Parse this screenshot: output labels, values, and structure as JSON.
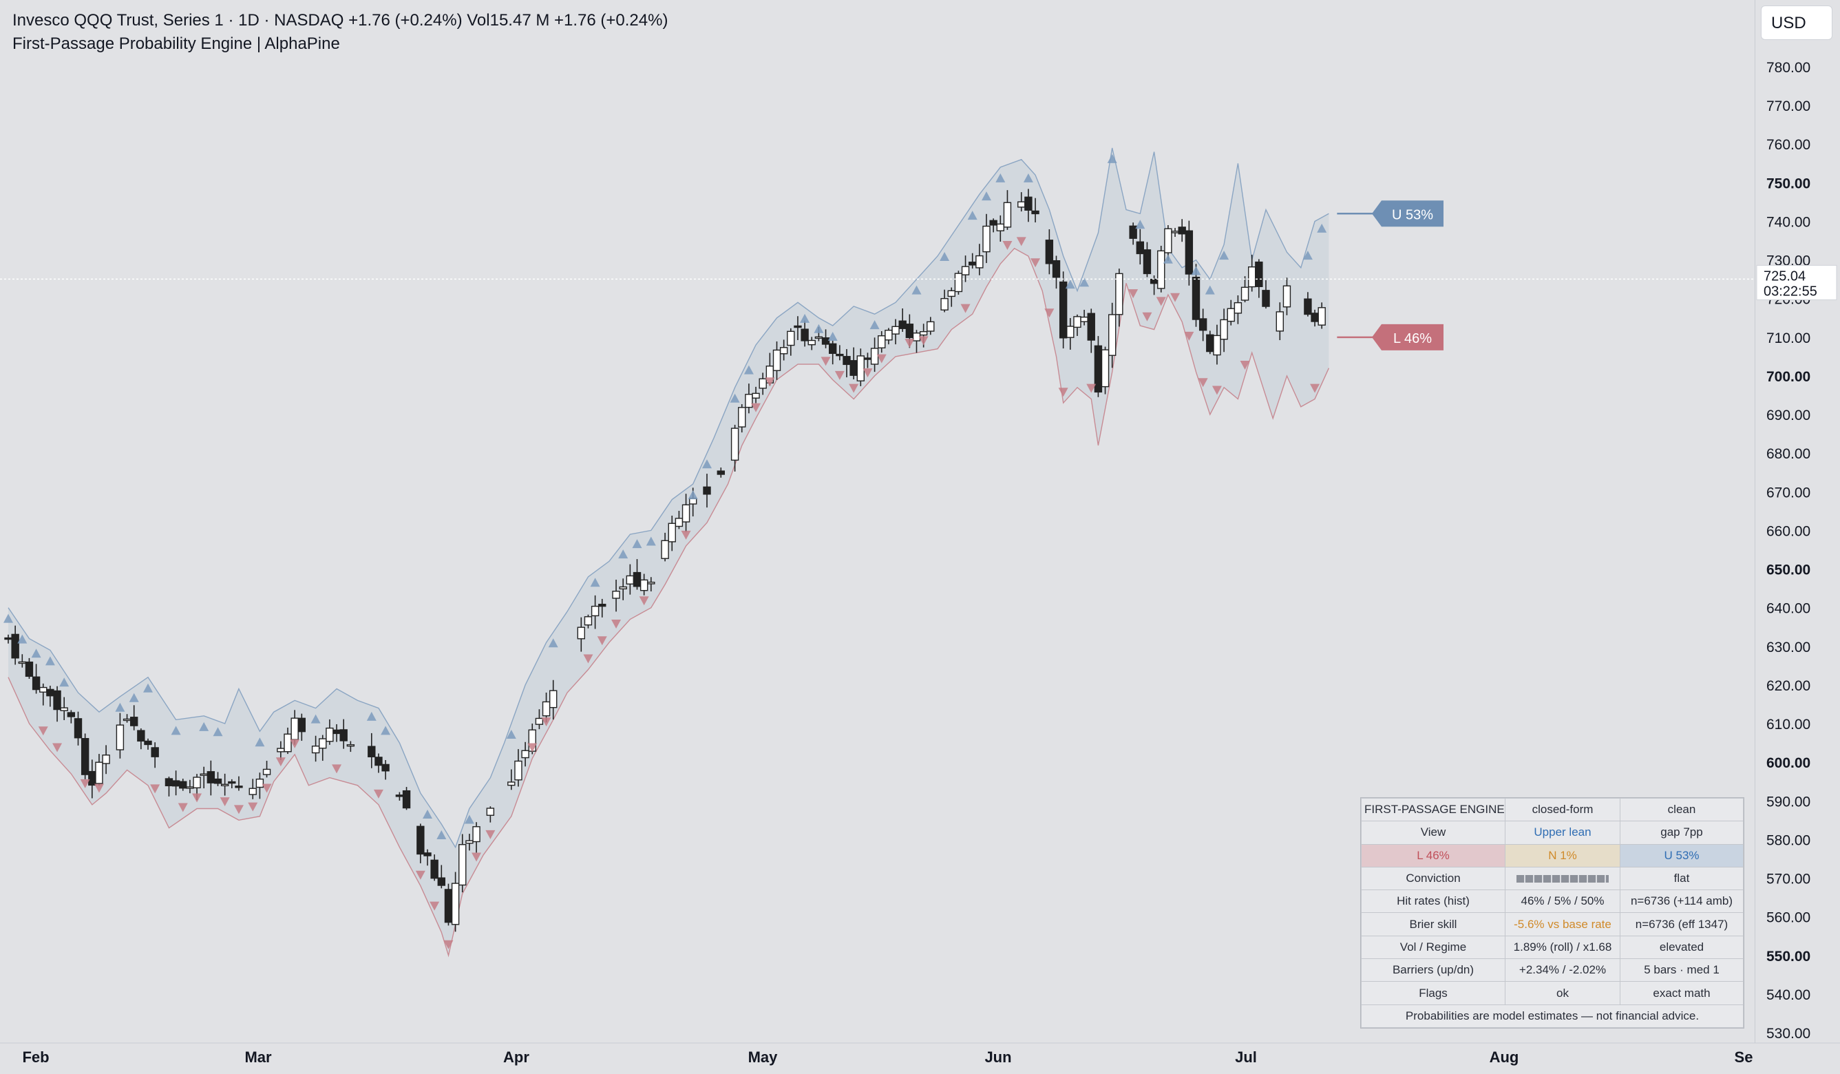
{
  "header": {
    "line1": "Invesco QQQ Trust, Series 1 · 1D · NASDAQ  +1.76 (+0.24%)  Vol15.47 M  +1.76 (+0.24%)",
    "line2": "First-Passage Probability Engine | AlphaPine"
  },
  "currency": "USD",
  "colors": {
    "background": "#e1e2e5",
    "upper_band": "#7d9bbd",
    "lower_band": "#c47c86",
    "bull_candle": "#ffffff",
    "bear_candle": "#222222",
    "up_label": "#6e8fb4",
    "down_label": "#c4707b"
  },
  "chart_data": {
    "type": "candlestick",
    "x_axis_months": [
      "Feb",
      "Mar",
      "Apr",
      "May",
      "Jun",
      "Jul",
      "Aug",
      "Se"
    ],
    "y_axis": {
      "ticks": [
        "780.00",
        "770.00",
        "760.00",
        "750.00",
        "740.00",
        "730.00",
        "720.00",
        "710.00",
        "700.00",
        "690.00",
        "680.00",
        "670.00",
        "660.00",
        "650.00",
        "640.00",
        "630.00",
        "620.00",
        "610.00",
        "600.00",
        "590.00",
        "580.00",
        "570.00",
        "560.00",
        "550.00",
        "540.00",
        "530.00"
      ],
      "bold_ticks": [
        "750.00",
        "700.00",
        "650.00",
        "600.00",
        "550.00"
      ],
      "range": [
        527,
        787
      ]
    },
    "last_price": "725.04",
    "countdown": "03:22:55",
    "upper_target": {
      "label": "U 53%",
      "price": 742
    },
    "lower_target": {
      "label": "L 46%",
      "price": 710
    },
    "close_path": [
      [
        0,
        632
      ],
      [
        3,
        622
      ],
      [
        6,
        617
      ],
      [
        9,
        612
      ],
      [
        11,
        597
      ],
      [
        12,
        595
      ],
      [
        14,
        603
      ],
      [
        17,
        610
      ],
      [
        20,
        606
      ],
      [
        23,
        594
      ],
      [
        27,
        596
      ],
      [
        30,
        594
      ],
      [
        33,
        593
      ],
      [
        36,
        594
      ],
      [
        38,
        603
      ],
      [
        41,
        610
      ],
      [
        43,
        604
      ],
      [
        46,
        608
      ],
      [
        50,
        604
      ],
      [
        53,
        601
      ],
      [
        56,
        591
      ],
      [
        59,
        577
      ],
      [
        62,
        568
      ],
      [
        63,
        560
      ],
      [
        65,
        578
      ],
      [
        68,
        586
      ],
      [
        70,
        591
      ],
      [
        72,
        593
      ],
      [
        75,
        610
      ],
      [
        78,
        620
      ],
      [
        80,
        630
      ],
      [
        83,
        637
      ],
      [
        86,
        644
      ],
      [
        89,
        647
      ],
      [
        92,
        648
      ],
      [
        94,
        657
      ],
      [
        97,
        666
      ],
      [
        100,
        671
      ],
      [
        103,
        678
      ],
      [
        105,
        693
      ],
      [
        107,
        697
      ],
      [
        110,
        707
      ],
      [
        113,
        712
      ],
      [
        116,
        709
      ],
      [
        118,
        705
      ],
      [
        121,
        702
      ],
      [
        124,
        708
      ],
      [
        127,
        713
      ],
      [
        130,
        711
      ],
      [
        133,
        716
      ],
      [
        135,
        723
      ],
      [
        138,
        729
      ],
      [
        140,
        737
      ],
      [
        142,
        741
      ],
      [
        144,
        745
      ],
      [
        146,
        742
      ],
      [
        148,
        738
      ],
      [
        150,
        724
      ],
      [
        151,
        708
      ],
      [
        153,
        717
      ],
      [
        155,
        711
      ],
      [
        156,
        697
      ],
      [
        158,
        716
      ],
      [
        160,
        739
      ],
      [
        162,
        730
      ],
      [
        164,
        724
      ],
      [
        166,
        740
      ],
      [
        168,
        738
      ],
      [
        170,
        714
      ],
      [
        172,
        708
      ],
      [
        174,
        716
      ],
      [
        176,
        719
      ],
      [
        178,
        727
      ],
      [
        181,
        712
      ],
      [
        183,
        723
      ],
      [
        185,
        718
      ],
      [
        187,
        713
      ],
      [
        189,
        719
      ]
    ],
    "upper_band_path": [
      [
        0,
        640
      ],
      [
        3,
        632
      ],
      [
        6,
        629
      ],
      [
        10,
        618
      ],
      [
        13,
        613
      ],
      [
        16,
        617
      ],
      [
        20,
        622
      ],
      [
        24,
        611
      ],
      [
        28,
        612
      ],
      [
        31,
        610
      ],
      [
        33,
        619
      ],
      [
        36,
        608
      ],
      [
        38,
        613
      ],
      [
        41,
        616
      ],
      [
        44,
        614
      ],
      [
        47,
        619
      ],
      [
        50,
        616
      ],
      [
        53,
        614
      ],
      [
        56,
        605
      ],
      [
        59,
        592
      ],
      [
        62,
        584
      ],
      [
        64,
        578
      ],
      [
        66,
        588
      ],
      [
        69,
        596
      ],
      [
        71,
        605
      ],
      [
        74,
        620
      ],
      [
        77,
        631
      ],
      [
        80,
        639
      ],
      [
        83,
        648
      ],
      [
        86,
        652
      ],
      [
        89,
        659
      ],
      [
        92,
        660
      ],
      [
        95,
        668
      ],
      [
        98,
        672
      ],
      [
        101,
        684
      ],
      [
        104,
        697
      ],
      [
        107,
        708
      ],
      [
        110,
        715
      ],
      [
        113,
        719
      ],
      [
        116,
        715
      ],
      [
        118,
        713
      ],
      [
        121,
        718
      ],
      [
        124,
        716
      ],
      [
        127,
        719
      ],
      [
        130,
        725
      ],
      [
        133,
        731
      ],
      [
        136,
        739
      ],
      [
        139,
        747
      ],
      [
        142,
        754
      ],
      [
        145,
        756
      ],
      [
        147,
        752
      ],
      [
        149,
        743
      ],
      [
        151,
        731
      ],
      [
        153,
        722
      ],
      [
        156,
        737
      ],
      [
        158,
        759
      ],
      [
        160,
        743
      ],
      [
        162,
        742
      ],
      [
        164,
        758
      ],
      [
        166,
        733
      ],
      [
        168,
        728
      ],
      [
        170,
        730
      ],
      [
        172,
        725
      ],
      [
        174,
        734
      ],
      [
        176,
        755
      ],
      [
        178,
        730
      ],
      [
        180,
        743
      ],
      [
        183,
        732
      ],
      [
        185,
        728
      ],
      [
        187,
        740
      ],
      [
        189,
        742
      ]
    ],
    "lower_band_path": [
      [
        0,
        622
      ],
      [
        3,
        610
      ],
      [
        6,
        603
      ],
      [
        9,
        597
      ],
      [
        12,
        589
      ],
      [
        14,
        592
      ],
      [
        17,
        598
      ],
      [
        20,
        594
      ],
      [
        23,
        583
      ],
      [
        27,
        588
      ],
      [
        30,
        588
      ],
      [
        33,
        585
      ],
      [
        36,
        586
      ],
      [
        38,
        595
      ],
      [
        41,
        602
      ],
      [
        43,
        594
      ],
      [
        46,
        596
      ],
      [
        50,
        594
      ],
      [
        53,
        589
      ],
      [
        56,
        578
      ],
      [
        59,
        568
      ],
      [
        62,
        556
      ],
      [
        63,
        550
      ],
      [
        65,
        566
      ],
      [
        68,
        576
      ],
      [
        70,
        581
      ],
      [
        72,
        586
      ],
      [
        75,
        601
      ],
      [
        78,
        611
      ],
      [
        80,
        618
      ],
      [
        83,
        624
      ],
      [
        86,
        631
      ],
      [
        89,
        637
      ],
      [
        92,
        640
      ],
      [
        94,
        646
      ],
      [
        97,
        656
      ],
      [
        100,
        662
      ],
      [
        103,
        672
      ],
      [
        105,
        682
      ],
      [
        107,
        689
      ],
      [
        110,
        699
      ],
      [
        113,
        703
      ],
      [
        116,
        703
      ],
      [
        118,
        699
      ],
      [
        121,
        694
      ],
      [
        124,
        700
      ],
      [
        127,
        705
      ],
      [
        130,
        706
      ],
      [
        133,
        707
      ],
      [
        135,
        712
      ],
      [
        138,
        716
      ],
      [
        140,
        723
      ],
      [
        142,
        729
      ],
      [
        144,
        733
      ],
      [
        146,
        731
      ],
      [
        148,
        722
      ],
      [
        150,
        705
      ],
      [
        151,
        693
      ],
      [
        153,
        697
      ],
      [
        155,
        694
      ],
      [
        156,
        682
      ],
      [
        158,
        701
      ],
      [
        160,
        724
      ],
      [
        162,
        713
      ],
      [
        164,
        712
      ],
      [
        166,
        721
      ],
      [
        168,
        714
      ],
      [
        170,
        701
      ],
      [
        172,
        690
      ],
      [
        174,
        697
      ],
      [
        176,
        694
      ],
      [
        178,
        706
      ],
      [
        181,
        689
      ],
      [
        183,
        700
      ],
      [
        185,
        692
      ],
      [
        187,
        694
      ],
      [
        189,
        702
      ]
    ],
    "panel": {
      "title": "FIRST-PASSAGE ENGINE",
      "header_col2": "closed-form",
      "header_col3": "clean",
      "rows": [
        [
          "View",
          "Upper lean",
          "gap 7pp"
        ],
        [
          "L 46%",
          "N 1%",
          "U 53%"
        ],
        [
          "Conviction",
          "",
          "flat"
        ],
        [
          "Hit rates (hist)",
          "46% / 5% / 50%",
          "n=6736 (+114 amb)"
        ],
        [
          "Brier skill",
          "-5.6% vs base rate",
          "n=6736 (eff 1347)"
        ],
        [
          "Vol / Regime",
          "1.89% (roll) / x1.68",
          "elevated"
        ],
        [
          "Barriers (up/dn)",
          "+2.34% / -2.02%",
          "5 bars · med 1"
        ],
        [
          "Flags",
          "ok",
          "exact math"
        ]
      ],
      "footer": "Probabilities are model estimates — not financial advice."
    }
  }
}
